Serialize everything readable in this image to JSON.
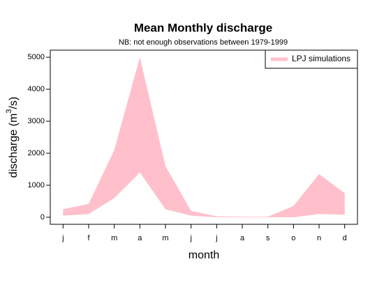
{
  "chart_data": {
    "type": "band",
    "title": "Mean Monthly discharge",
    "subtitle": "NB: not enough observations between 1979-1999",
    "xlabel": "month",
    "ylabel_parts": [
      "discharge (m",
      "3",
      "/s)"
    ],
    "categories": [
      "j",
      "f",
      "m",
      "a",
      "m",
      "j",
      "j",
      "a",
      "s",
      "o",
      "n",
      "d"
    ],
    "series": [
      {
        "name": "LPJ simulations",
        "color": "#ffc0cb",
        "upper": [
          250,
          420,
          2100,
          5000,
          1600,
          200,
          30,
          20,
          20,
          350,
          1350,
          750
        ],
        "lower": [
          50,
          100,
          600,
          1400,
          250,
          50,
          0,
          0,
          0,
          0,
          100,
          80
        ]
      }
    ],
    "ylim": [
      -220,
      5220
    ],
    "yticks": [
      0,
      1000,
      2000,
      3000,
      4000,
      5000
    ],
    "legend": "topright"
  }
}
